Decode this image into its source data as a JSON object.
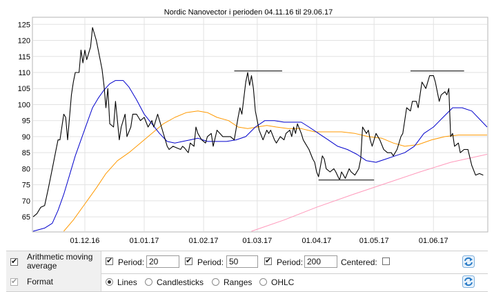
{
  "chart_data": {
    "type": "line",
    "title": "Nordic Nanovector i perioden 04.11.16 til 29.06.17",
    "xlabel": "",
    "ylabel": "",
    "ylim": [
      60.5,
      127
    ],
    "yticks": [
      65,
      70,
      75,
      80,
      85,
      90,
      95,
      100,
      105,
      110,
      115,
      120,
      125
    ],
    "xlim": [
      "2016-11-04",
      "2017-06-29"
    ],
    "xticks": [
      {
        "date": "2016-12-01",
        "label": "01.12.16"
      },
      {
        "date": "2017-01-01",
        "label": "01.01.17"
      },
      {
        "date": "2017-02-01",
        "label": "01.02.17"
      },
      {
        "date": "2017-03-01",
        "label": "01.03.17"
      },
      {
        "date": "2017-04-01",
        "label": "01.04.17"
      },
      {
        "date": "2017-05-01",
        "label": "01.05.17"
      },
      {
        "date": "2017-06-01",
        "label": "01.06.17"
      }
    ],
    "grid": true,
    "series": [
      {
        "color": "#000000",
        "points": [
          [
            "2016-11-04",
            65
          ],
          [
            "2016-11-06",
            66
          ],
          [
            "2016-11-08",
            68
          ],
          [
            "2016-11-10",
            68.5
          ],
          [
            "2016-11-12",
            74
          ],
          [
            "2016-11-14",
            80
          ],
          [
            "2016-11-16",
            86
          ],
          [
            "2016-11-17",
            89
          ],
          [
            "2016-11-18",
            89
          ],
          [
            "2016-11-20",
            97
          ],
          [
            "2016-11-21",
            96
          ],
          [
            "2016-11-22",
            89
          ],
          [
            "2016-11-24",
            103
          ],
          [
            "2016-11-25",
            107
          ],
          [
            "2016-11-26",
            110
          ],
          [
            "2016-11-28",
            110
          ],
          [
            "2016-11-29",
            117
          ],
          [
            "2016-11-30",
            113
          ],
          [
            "2016-12-01",
            117
          ],
          [
            "2016-12-02",
            114
          ],
          [
            "2016-12-04",
            118
          ],
          [
            "2016-12-05",
            124
          ],
          [
            "2016-12-07",
            120
          ],
          [
            "2016-12-08",
            117
          ],
          [
            "2016-12-10",
            111
          ],
          [
            "2016-12-11",
            106
          ],
          [
            "2016-12-12",
            99
          ],
          [
            "2016-12-13",
            105
          ],
          [
            "2016-12-14",
            94
          ],
          [
            "2016-12-16",
            93
          ],
          [
            "2016-12-17",
            101
          ],
          [
            "2016-12-18",
            95
          ],
          [
            "2016-12-19",
            89
          ],
          [
            "2016-12-20",
            93
          ],
          [
            "2016-12-22",
            97
          ],
          [
            "2016-12-23",
            90
          ],
          [
            "2016-12-25",
            93
          ],
          [
            "2016-12-26",
            97
          ],
          [
            "2016-12-28",
            97
          ],
          [
            "2016-12-29",
            96
          ],
          [
            "2016-12-30",
            95
          ],
          [
            "2017-01-01",
            96
          ],
          [
            "2017-01-03",
            93
          ],
          [
            "2017-01-05",
            95
          ],
          [
            "2017-01-06",
            93
          ],
          [
            "2017-01-08",
            97
          ],
          [
            "2017-01-10",
            93
          ],
          [
            "2017-01-12",
            89
          ],
          [
            "2017-01-13",
            87
          ],
          [
            "2017-01-14",
            86
          ],
          [
            "2017-01-16",
            87
          ],
          [
            "2017-01-18",
            86.5
          ],
          [
            "2017-01-20",
            86
          ],
          [
            "2017-01-21",
            87
          ],
          [
            "2017-01-22",
            86.5
          ],
          [
            "2017-01-24",
            85
          ],
          [
            "2017-01-25",
            88
          ],
          [
            "2017-01-27",
            87
          ],
          [
            "2017-01-28",
            93
          ],
          [
            "2017-01-29",
            91
          ],
          [
            "2017-01-31",
            89
          ],
          [
            "2017-02-02",
            88
          ],
          [
            "2017-02-03",
            90
          ],
          [
            "2017-02-05",
            91
          ],
          [
            "2017-02-06",
            87
          ],
          [
            "2017-02-08",
            92
          ],
          [
            "2017-02-11",
            90
          ],
          [
            "2017-02-13",
            90
          ],
          [
            "2017-02-15",
            90
          ],
          [
            "2017-02-17",
            89
          ],
          [
            "2017-02-19",
            96
          ],
          [
            "2017-02-20",
            99
          ],
          [
            "2017-02-21",
            97
          ],
          [
            "2017-02-23",
            107
          ],
          [
            "2017-02-24",
            110
          ],
          [
            "2017-02-25",
            106
          ],
          [
            "2017-02-26",
            109
          ],
          [
            "2017-02-27",
            105
          ],
          [
            "2017-02-28",
            98
          ],
          [
            "2017-03-02",
            92
          ],
          [
            "2017-03-04",
            89
          ],
          [
            "2017-03-06",
            92
          ],
          [
            "2017-03-07",
            91
          ],
          [
            "2017-03-08",
            92
          ],
          [
            "2017-03-10",
            89
          ],
          [
            "2017-03-11",
            88
          ],
          [
            "2017-03-13",
            90
          ],
          [
            "2017-03-15",
            89
          ],
          [
            "2017-03-16",
            91
          ],
          [
            "2017-03-18",
            92
          ],
          [
            "2017-03-19",
            90
          ],
          [
            "2017-03-20",
            93
          ],
          [
            "2017-03-21",
            91
          ],
          [
            "2017-03-22",
            94
          ],
          [
            "2017-03-24",
            91
          ],
          [
            "2017-03-25",
            89
          ],
          [
            "2017-03-26",
            88
          ],
          [
            "2017-03-28",
            86
          ],
          [
            "2017-03-30",
            83
          ],
          [
            "2017-03-31",
            82
          ],
          [
            "2017-04-01",
            79
          ],
          [
            "2017-04-02",
            77.5
          ],
          [
            "2017-04-04",
            84
          ],
          [
            "2017-04-05",
            83
          ],
          [
            "2017-04-06",
            80
          ],
          [
            "2017-04-08",
            79
          ],
          [
            "2017-04-10",
            80
          ],
          [
            "2017-04-11",
            79
          ],
          [
            "2017-04-13",
            76.5
          ],
          [
            "2017-04-14",
            79
          ],
          [
            "2017-04-15",
            78
          ],
          [
            "2017-04-16",
            77
          ],
          [
            "2017-04-18",
            80
          ],
          [
            "2017-04-19",
            79
          ],
          [
            "2017-04-21",
            78
          ],
          [
            "2017-04-23",
            80
          ],
          [
            "2017-04-24",
            83
          ],
          [
            "2017-04-25",
            93
          ],
          [
            "2017-04-27",
            91
          ],
          [
            "2017-04-28",
            92
          ],
          [
            "2017-04-29",
            89
          ],
          [
            "2017-04-30",
            87
          ],
          [
            "2017-05-02",
            91
          ],
          [
            "2017-05-04",
            89
          ],
          [
            "2017-05-06",
            86
          ],
          [
            "2017-05-08",
            85
          ],
          [
            "2017-05-10",
            85
          ],
          [
            "2017-05-11",
            84
          ],
          [
            "2017-05-13",
            86
          ],
          [
            "2017-05-15",
            90
          ],
          [
            "2017-05-16",
            91
          ],
          [
            "2017-05-17",
            95
          ],
          [
            "2017-05-18",
            99
          ],
          [
            "2017-05-20",
            98
          ],
          [
            "2017-05-21",
            101
          ],
          [
            "2017-05-23",
            101
          ],
          [
            "2017-05-24",
            99
          ],
          [
            "2017-05-25",
            103
          ],
          [
            "2017-05-26",
            107
          ],
          [
            "2017-05-28",
            105
          ],
          [
            "2017-05-30",
            109
          ],
          [
            "2017-06-01",
            109
          ],
          [
            "2017-06-02",
            107
          ],
          [
            "2017-06-04",
            101
          ],
          [
            "2017-06-05",
            103
          ],
          [
            "2017-06-07",
            104
          ],
          [
            "2017-06-08",
            103
          ],
          [
            "2017-06-09",
            105
          ],
          [
            "2017-06-10",
            90
          ],
          [
            "2017-06-11",
            91
          ],
          [
            "2017-06-12",
            87
          ],
          [
            "2017-06-14",
            88
          ],
          [
            "2017-06-15",
            85
          ],
          [
            "2017-06-17",
            86
          ],
          [
            "2017-06-19",
            86
          ],
          [
            "2017-06-21",
            81
          ],
          [
            "2017-06-23",
            78
          ],
          [
            "2017-06-25",
            78.5
          ],
          [
            "2017-06-27",
            78
          ]
        ]
      },
      {
        "name": "20",
        "color": "#0000cc",
        "points": [
          [
            "2016-11-04",
            60.5
          ],
          [
            "2016-11-10",
            61.5
          ],
          [
            "2016-11-14",
            63
          ],
          [
            "2016-11-17",
            67
          ],
          [
            "2016-11-20",
            72
          ],
          [
            "2016-11-23",
            78
          ],
          [
            "2016-11-26",
            84
          ],
          [
            "2016-11-29",
            89
          ],
          [
            "2016-12-02",
            94
          ],
          [
            "2016-12-05",
            99
          ],
          [
            "2016-12-08",
            102
          ],
          [
            "2016-12-11",
            104.5
          ],
          [
            "2016-12-14",
            106.5
          ],
          [
            "2016-12-17",
            107.5
          ],
          [
            "2016-12-21",
            107.5
          ],
          [
            "2016-12-24",
            105.5
          ],
          [
            "2016-12-28",
            101.5
          ],
          [
            "2017-01-01",
            97
          ],
          [
            "2017-01-05",
            94
          ],
          [
            "2017-01-09",
            91
          ],
          [
            "2017-01-13",
            88.5
          ],
          [
            "2017-01-17",
            88
          ],
          [
            "2017-01-21",
            88.5
          ],
          [
            "2017-01-25",
            89
          ],
          [
            "2017-01-29",
            89.5
          ],
          [
            "2017-02-03",
            88.5
          ],
          [
            "2017-02-08",
            88.5
          ],
          [
            "2017-02-13",
            88.5
          ],
          [
            "2017-02-18",
            89
          ],
          [
            "2017-02-23",
            90
          ],
          [
            "2017-02-28",
            93
          ],
          [
            "2017-03-05",
            95
          ],
          [
            "2017-03-10",
            95
          ],
          [
            "2017-03-15",
            94.5
          ],
          [
            "2017-03-20",
            94.5
          ],
          [
            "2017-03-24",
            94.5
          ],
          [
            "2017-03-28",
            93
          ],
          [
            "2017-04-02",
            91
          ],
          [
            "2017-04-07",
            89
          ],
          [
            "2017-04-12",
            87
          ],
          [
            "2017-04-17",
            86
          ],
          [
            "2017-04-22",
            84.5
          ],
          [
            "2017-04-27",
            82.5
          ],
          [
            "2017-05-02",
            82
          ],
          [
            "2017-05-07",
            83
          ],
          [
            "2017-05-12",
            84
          ],
          [
            "2017-05-17",
            85
          ],
          [
            "2017-05-22",
            87
          ],
          [
            "2017-05-27",
            91
          ],
          [
            "2017-06-01",
            93
          ],
          [
            "2017-06-06",
            96
          ],
          [
            "2017-06-11",
            99
          ],
          [
            "2017-06-16",
            99
          ],
          [
            "2017-06-21",
            98
          ],
          [
            "2017-06-29",
            93
          ]
        ]
      },
      {
        "name": "50",
        "color": "#ff9900",
        "points": [
          [
            "2016-11-20",
            60.5
          ],
          [
            "2016-11-25",
            64
          ],
          [
            "2016-12-01",
            69
          ],
          [
            "2016-12-07",
            74
          ],
          [
            "2016-12-12",
            78.5
          ],
          [
            "2016-12-18",
            82.5
          ],
          [
            "2016-12-24",
            85
          ],
          [
            "2016-12-30",
            88
          ],
          [
            "2017-01-05",
            91
          ],
          [
            "2017-01-11",
            94
          ],
          [
            "2017-01-17",
            96
          ],
          [
            "2017-01-23",
            97.5
          ],
          [
            "2017-01-29",
            98
          ],
          [
            "2017-02-03",
            97.5
          ],
          [
            "2017-02-08",
            96
          ],
          [
            "2017-02-14",
            95
          ],
          [
            "2017-02-19",
            93
          ],
          [
            "2017-02-24",
            92.5
          ],
          [
            "2017-03-01",
            93
          ],
          [
            "2017-03-06",
            93.5
          ],
          [
            "2017-03-11",
            93
          ],
          [
            "2017-03-17",
            92.5
          ],
          [
            "2017-03-24",
            92.5
          ],
          [
            "2017-03-31",
            91.5
          ],
          [
            "2017-04-07",
            91.5
          ],
          [
            "2017-04-14",
            91.5
          ],
          [
            "2017-04-21",
            91
          ],
          [
            "2017-04-28",
            90
          ],
          [
            "2017-05-05",
            89.5
          ],
          [
            "2017-05-11",
            88
          ],
          [
            "2017-05-17",
            87
          ],
          [
            "2017-05-24",
            87.5
          ],
          [
            "2017-05-31",
            89
          ],
          [
            "2017-06-07",
            90
          ],
          [
            "2017-06-14",
            90.5
          ],
          [
            "2017-06-22",
            90.5
          ],
          [
            "2017-06-29",
            90.5
          ]
        ]
      },
      {
        "name": "200",
        "color": "#ff99bb",
        "points": [
          [
            "2017-02-26",
            60.5
          ],
          [
            "2017-03-15",
            64
          ],
          [
            "2017-04-01",
            68
          ],
          [
            "2017-04-20",
            72
          ],
          [
            "2017-05-10",
            76
          ],
          [
            "2017-05-25",
            79
          ],
          [
            "2017-06-10",
            82
          ],
          [
            "2017-06-29",
            84.5
          ]
        ]
      }
    ],
    "annotations": [
      {
        "type": "hline",
        "y": 110.5,
        "from": "2017-02-17",
        "to": "2017-03-14"
      },
      {
        "type": "hline",
        "y": 76.5,
        "from": "2017-04-02",
        "to": "2017-05-01"
      },
      {
        "type": "hline",
        "y": 110.5,
        "from": "2017-05-20",
        "to": "2017-06-17"
      }
    ]
  },
  "controls": {
    "moving_average": {
      "checked": true,
      "label": "Arithmetic moving average",
      "periods": [
        {
          "checked": true,
          "label": "Period:",
          "value": "20"
        },
        {
          "checked": true,
          "label": "Period:",
          "value": "50"
        },
        {
          "checked": true,
          "label": "Period:",
          "value": "200"
        }
      ],
      "centered_label": "Centered:",
      "centered_checked": false
    },
    "format": {
      "checked": true,
      "label": "Format",
      "options": [
        {
          "label": "Lines",
          "selected": true
        },
        {
          "label": "Candlesticks",
          "selected": false
        },
        {
          "label": "Ranges",
          "selected": false
        },
        {
          "label": "OHLC",
          "selected": false
        }
      ]
    },
    "refresh_icon": "refresh-icon",
    "refresh_color": "#2a7cc7"
  }
}
